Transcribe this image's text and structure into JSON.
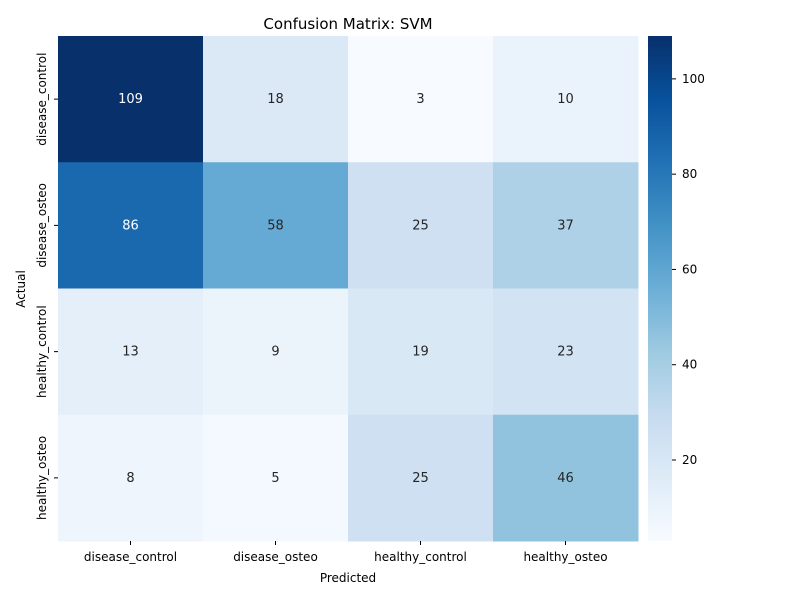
{
  "chart_data": {
    "type": "heatmap",
    "title": "Confusion Matrix: SVM",
    "xlabel": "Predicted",
    "ylabel": "Actual",
    "x_categories": [
      "disease_control",
      "disease_osteo",
      "healthy_control",
      "healthy_osteo"
    ],
    "y_categories": [
      "disease_control",
      "disease_osteo",
      "healthy_control",
      "healthy_osteo"
    ],
    "values": [
      [
        109,
        18,
        3,
        10
      ],
      [
        86,
        58,
        25,
        37
      ],
      [
        13,
        9,
        19,
        23
      ],
      [
        8,
        5,
        25,
        46
      ]
    ],
    "colormap": "Blues",
    "color_range": [
      3,
      109
    ],
    "colorbar_ticks": [
      20,
      40,
      60,
      80,
      100
    ],
    "annotations": true
  }
}
